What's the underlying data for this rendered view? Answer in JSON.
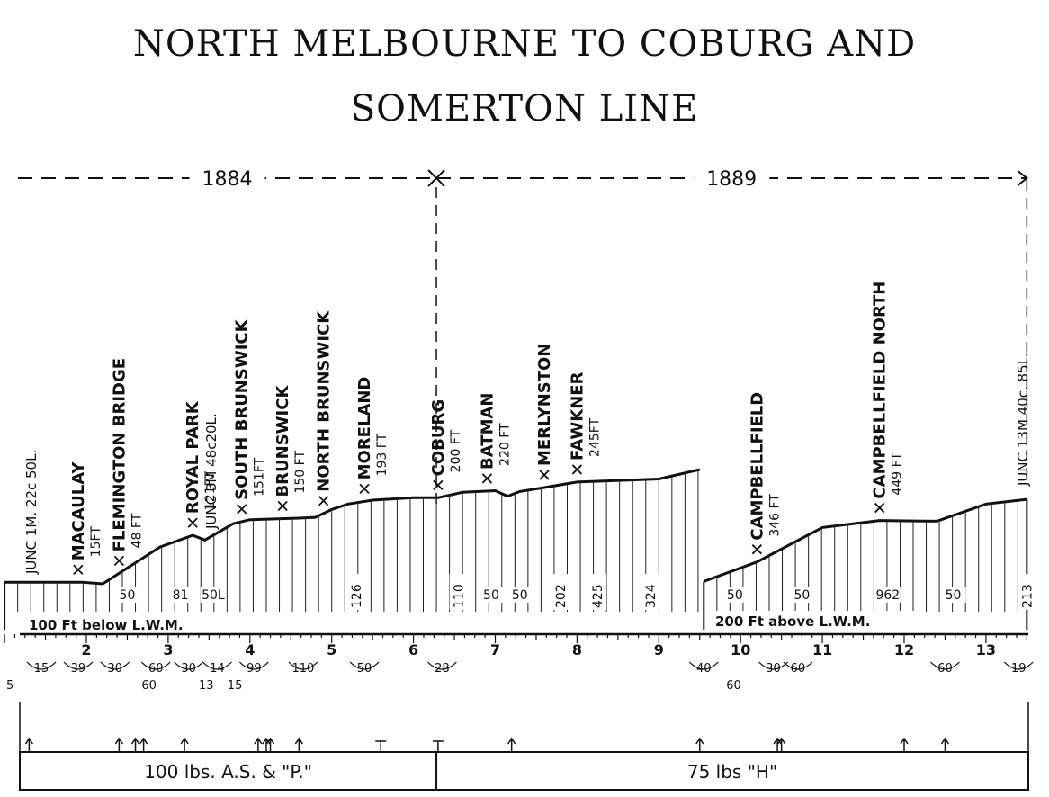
{
  "title": {
    "line1": "NORTH MELBOURNE TO COBURG AND",
    "line2": "SOMERTON LINE"
  },
  "opening_years": [
    {
      "label": "1884",
      "from_mile": 1.28,
      "to_mile": 6.28
    },
    {
      "label": "1889",
      "from_mile": 6.28,
      "to_mile": 13.5
    }
  ],
  "stations": [
    {
      "name": "MACAULAY",
      "height": "15FT",
      "mile": 1.9
    },
    {
      "name": "FLEMINGTON BRIDGE",
      "height": "48 FT",
      "mile": 2.4
    },
    {
      "name": "ROYAL PARK",
      "height": "121FT",
      "mile": 3.3
    },
    {
      "name": "SOUTH BRUNSWICK",
      "height": "151FT",
      "mile": 3.9
    },
    {
      "name": "BRUNSWICK",
      "height": "150 FT",
      "mile": 4.4
    },
    {
      "name": "NORTH BRUNSWICK",
      "height": "",
      "mile": 4.9
    },
    {
      "name": "MORELAND",
      "height": "193 FT",
      "mile": 5.4
    },
    {
      "name": "COBURG",
      "height": "200 FT",
      "mile": 6.3
    },
    {
      "name": "BATMAN",
      "height": "220 FT",
      "mile": 6.9
    },
    {
      "name": "MERLYNSTON",
      "height": "",
      "mile": 7.6
    },
    {
      "name": "FAWKNER",
      "height": "245FT",
      "mile": 8.0
    },
    {
      "name": "CAMPBELLFIELD",
      "height": "346 FT",
      "mile": 10.2
    },
    {
      "name": "CAMPBELLFIELD NORTH",
      "height": "449 FT",
      "mile": 11.7
    }
  ],
  "junctions": [
    {
      "label": "JUNC 1M. 22c 50L."
    },
    {
      "label": "JUNC 3M 48c20L."
    },
    {
      "label": "JUNC 13M 40c. 85L."
    }
  ],
  "profile_points": [
    [
      1.0,
      10
    ],
    [
      1.95,
      10
    ],
    [
      2.2,
      8
    ],
    [
      2.9,
      55
    ],
    [
      3.3,
      70
    ],
    [
      3.45,
      64
    ],
    [
      3.8,
      85
    ],
    [
      4.0,
      90
    ],
    [
      4.6,
      92
    ],
    [
      4.8,
      93
    ],
    [
      5.0,
      103
    ],
    [
      5.2,
      110
    ],
    [
      5.5,
      115
    ],
    [
      6.0,
      118
    ],
    [
      6.3,
      118
    ],
    [
      6.6,
      125
    ],
    [
      7.0,
      127
    ],
    [
      7.15,
      120
    ],
    [
      7.3,
      126
    ],
    [
      7.6,
      131
    ],
    [
      8.0,
      138
    ],
    [
      9.0,
      142
    ],
    [
      9.5,
      154
    ],
    [
      9.55,
      11
    ],
    [
      10.2,
      36
    ],
    [
      11.0,
      80
    ],
    [
      11.7,
      89
    ],
    [
      12.4,
      88
    ],
    [
      13.0,
      110
    ],
    [
      13.5,
      116
    ]
  ],
  "gradients": [
    {
      "label": "50",
      "mile": 2.5
    },
    {
      "label": "81",
      "mile": 3.15
    },
    {
      "label": "50L",
      "mile": 3.55
    },
    {
      "label": "126",
      "mile": 5.3
    },
    {
      "label": "110",
      "mile": 6.55
    },
    {
      "label": "50",
      "mile": 6.95
    },
    {
      "label": "50",
      "mile": 7.3
    },
    {
      "label": "202",
      "mile": 7.8
    },
    {
      "label": "425",
      "mile": 8.25
    },
    {
      "label": "324",
      "mile": 8.9
    },
    {
      "label": "50",
      "mile": 9.93
    },
    {
      "label": "50",
      "mile": 10.75
    },
    {
      "label": "962",
      "mile": 11.8
    },
    {
      "label": "50",
      "mile": 12.6
    },
    {
      "label": "213",
      "mile": 13.5
    }
  ],
  "levels": {
    "below": "100 Ft below L.W.M.",
    "above": "200 Ft above L.W.M."
  },
  "mileposts": [
    2,
    3,
    4,
    5,
    6,
    7,
    8,
    9,
    10,
    11,
    12,
    13
  ],
  "curves": [
    {
      "label": "15",
      "mile": 1.45
    },
    {
      "label": "39",
      "mile": 1.9
    },
    {
      "label": "30",
      "mile": 2.35
    },
    {
      "label": "60",
      "mile": 2.85
    },
    {
      "label": "30",
      "mile": 3.25
    },
    {
      "label": "14",
      "mile": 3.6
    },
    {
      "label": "99",
      "mile": 4.05
    },
    {
      "label": "110",
      "mile": 4.65
    },
    {
      "label": "50",
      "mile": 5.4
    },
    {
      "label": "28",
      "mile": 6.35
    },
    {
      "label": "40",
      "mile": 9.55
    },
    {
      "label": "30",
      "mile": 10.4
    },
    {
      "label": "60",
      "mile": 10.7
    },
    {
      "label": "60",
      "mile": 12.5
    },
    {
      "label": "19",
      "mile": 13.4
    }
  ],
  "curves_lower": [
    {
      "label": "5",
      "mile": 1.0
    },
    {
      "label": "60",
      "mile": 2.7
    },
    {
      "label": "13",
      "mile": 3.4
    },
    {
      "label": "15",
      "mile": 3.75
    },
    {
      "label": "60",
      "mile": 9.85
    }
  ],
  "rails": [
    {
      "label": "100 lbs. A.S. & \"P.\"",
      "from_mile": 1.0,
      "to_mile": 6.28
    },
    {
      "label": "75 lbs \"H\"",
      "from_mile": 6.28,
      "to_mile": 13.5
    }
  ]
}
